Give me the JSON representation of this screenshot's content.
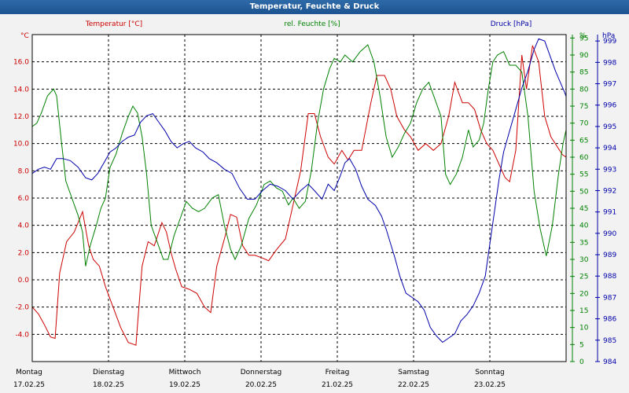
{
  "window": {
    "title": "Temperatur, Feuchte & Druck"
  },
  "chart_data": {
    "type": "line",
    "title": "Temperatur, Feuchte & Druck",
    "axes": {
      "temperature": {
        "label": "Temperatur [°C]",
        "unit": "°C",
        "min": -6,
        "max": 18,
        "ticks": [
          "-4.0",
          "-2.0",
          "0.0",
          "2.0",
          "4.0",
          "6.0",
          "8.0",
          "10.0",
          "12.0",
          "14.0",
          "16.0"
        ],
        "tick_values": [
          -4,
          -2,
          0,
          2,
          4,
          6,
          8,
          10,
          12,
          14,
          16
        ],
        "color": "#cc0000"
      },
      "humidity": {
        "label": "rel. Feuchte [%]",
        "unit": "%",
        "min": 0,
        "max": 96,
        "ticks": [
          "0",
          "5",
          "10",
          "15",
          "20",
          "25",
          "30",
          "35",
          "40",
          "45",
          "50",
          "55",
          "60",
          "65",
          "70",
          "75",
          "80",
          "85",
          "90",
          "95"
        ],
        "tick_values": [
          0,
          5,
          10,
          15,
          20,
          25,
          30,
          35,
          40,
          45,
          50,
          55,
          60,
          65,
          70,
          75,
          80,
          85,
          90,
          95
        ],
        "color": "#008000"
      },
      "pressure": {
        "label": "Druck [hPa]",
        "unit": "hPa",
        "min": 984,
        "max": 999.3,
        "ticks": [
          "984",
          "985",
          "986",
          "987",
          "988",
          "989",
          "990",
          "991",
          "992",
          "993",
          "994",
          "995",
          "996",
          "997",
          "998",
          "999"
        ],
        "tick_values": [
          984,
          985,
          986,
          987,
          988,
          989,
          990,
          991,
          992,
          993,
          994,
          995,
          996,
          997,
          998,
          999
        ],
        "color": "#0000aa"
      }
    },
    "x": {
      "days": [
        {
          "weekday": "Montag",
          "date": "17.02.25"
        },
        {
          "weekday": "Dienstag",
          "date": "18.02.25"
        },
        {
          "weekday": "Mittwoch",
          "date": "19.02.25"
        },
        {
          "weekday": "Donnerstag",
          "date": "20.02.25"
        },
        {
          "weekday": "Freitag",
          "date": "21.02.25"
        },
        {
          "weekday": "Samstag",
          "date": "22.02.25"
        },
        {
          "weekday": "Sonntag",
          "date": "23.02.25"
        }
      ],
      "range_days": [
        0,
        7.0
      ]
    },
    "series": [
      {
        "name": "Temperatur",
        "axis": "temperature",
        "color": "#cc0000",
        "points": [
          [
            0,
            -2.0
          ],
          [
            0.08,
            -2.5
          ],
          [
            0.16,
            -3.3
          ],
          [
            0.24,
            -4.2
          ],
          [
            0.3,
            -4.3
          ],
          [
            0.36,
            0.5
          ],
          [
            0.45,
            2.8
          ],
          [
            0.55,
            3.5
          ],
          [
            0.66,
            5.0
          ],
          [
            0.74,
            2.5
          ],
          [
            0.8,
            1.5
          ],
          [
            0.88,
            1.0
          ],
          [
            0.96,
            -0.5
          ],
          [
            1.06,
            -2.0
          ],
          [
            1.16,
            -3.5
          ],
          [
            1.26,
            -4.6
          ],
          [
            1.36,
            -4.8
          ],
          [
            1.44,
            1.0
          ],
          [
            1.52,
            2.8
          ],
          [
            1.6,
            2.5
          ],
          [
            1.7,
            4.2
          ],
          [
            1.76,
            3.5
          ],
          [
            1.82,
            2.0
          ],
          [
            1.88,
            0.8
          ],
          [
            1.96,
            -0.5
          ],
          [
            2.06,
            -0.7
          ],
          [
            2.16,
            -1.0
          ],
          [
            2.26,
            -2.0
          ],
          [
            2.34,
            -2.4
          ],
          [
            2.42,
            1.0
          ],
          [
            2.52,
            3.0
          ],
          [
            2.6,
            4.8
          ],
          [
            2.68,
            4.6
          ],
          [
            2.76,
            2.5
          ],
          [
            2.84,
            1.8
          ],
          [
            2.92,
            1.8
          ],
          [
            3.02,
            1.6
          ],
          [
            3.1,
            1.4
          ],
          [
            3.2,
            2.2
          ],
          [
            3.32,
            3.0
          ],
          [
            3.42,
            5.5
          ],
          [
            3.52,
            8.0
          ],
          [
            3.62,
            12.2
          ],
          [
            3.7,
            12.2
          ],
          [
            3.78,
            10.5
          ],
          [
            3.88,
            9.0
          ],
          [
            3.96,
            8.5
          ],
          [
            4.06,
            9.5
          ],
          [
            4.14,
            8.8
          ],
          [
            4.22,
            9.5
          ],
          [
            4.32,
            9.5
          ],
          [
            4.44,
            13.0
          ],
          [
            4.52,
            15.0
          ],
          [
            4.62,
            15.0
          ],
          [
            4.7,
            14.0
          ],
          [
            4.78,
            12.0
          ],
          [
            4.88,
            11.0
          ],
          [
            4.96,
            10.5
          ],
          [
            5.06,
            9.5
          ],
          [
            5.16,
            10.0
          ],
          [
            5.26,
            9.5
          ],
          [
            5.36,
            10.0
          ],
          [
            5.46,
            12.0
          ],
          [
            5.54,
            14.5
          ],
          [
            5.64,
            13.0
          ],
          [
            5.72,
            13.0
          ],
          [
            5.8,
            12.5
          ],
          [
            5.88,
            11.0
          ],
          [
            5.96,
            10.0
          ],
          [
            6.04,
            9.5
          ],
          [
            6.12,
            8.5
          ],
          [
            6.2,
            7.5
          ],
          [
            6.26,
            7.2
          ],
          [
            6.34,
            9.5
          ],
          [
            6.42,
            16.5
          ],
          [
            6.48,
            14.0
          ],
          [
            6.56,
            17.2
          ],
          [
            6.64,
            16.0
          ],
          [
            6.72,
            12.0
          ],
          [
            6.8,
            10.5
          ],
          [
            6.88,
            9.8
          ],
          [
            6.95,
            9.2
          ],
          [
            7.0,
            9.0
          ]
        ]
      },
      {
        "name": "rel. Feuchte",
        "axis": "humidity",
        "color": "#008000",
        "points": [
          [
            0,
            69
          ],
          [
            0.06,
            70
          ],
          [
            0.12,
            73
          ],
          [
            0.2,
            78
          ],
          [
            0.28,
            80
          ],
          [
            0.32,
            78
          ],
          [
            0.38,
            65
          ],
          [
            0.44,
            53
          ],
          [
            0.52,
            48
          ],
          [
            0.6,
            43
          ],
          [
            0.66,
            38
          ],
          [
            0.7,
            28
          ],
          [
            0.76,
            34
          ],
          [
            0.84,
            40
          ],
          [
            0.9,
            45
          ],
          [
            0.96,
            48
          ],
          [
            1.02,
            57
          ],
          [
            1.1,
            61
          ],
          [
            1.18,
            67
          ],
          [
            1.26,
            72
          ],
          [
            1.32,
            75
          ],
          [
            1.38,
            73
          ],
          [
            1.44,
            66
          ],
          [
            1.5,
            55
          ],
          [
            1.56,
            40
          ],
          [
            1.64,
            35
          ],
          [
            1.72,
            30
          ],
          [
            1.78,
            30
          ],
          [
            1.86,
            37
          ],
          [
            1.94,
            42
          ],
          [
            2.02,
            47
          ],
          [
            2.1,
            45
          ],
          [
            2.18,
            44
          ],
          [
            2.26,
            45
          ],
          [
            2.36,
            48
          ],
          [
            2.44,
            49
          ],
          [
            2.52,
            40
          ],
          [
            2.6,
            33
          ],
          [
            2.66,
            30
          ],
          [
            2.74,
            34
          ],
          [
            2.84,
            42
          ],
          [
            2.94,
            46
          ],
          [
            3.04,
            52
          ],
          [
            3.12,
            53
          ],
          [
            3.2,
            51
          ],
          [
            3.28,
            50
          ],
          [
            3.36,
            46
          ],
          [
            3.42,
            48
          ],
          [
            3.5,
            45
          ],
          [
            3.58,
            47
          ],
          [
            3.66,
            56
          ],
          [
            3.74,
            70
          ],
          [
            3.82,
            80
          ],
          [
            3.9,
            86
          ],
          [
            3.96,
            89
          ],
          [
            4.04,
            88
          ],
          [
            4.1,
            90
          ],
          [
            4.2,
            88
          ],
          [
            4.3,
            91
          ],
          [
            4.4,
            93
          ],
          [
            4.48,
            88
          ],
          [
            4.56,
            78
          ],
          [
            4.64,
            66
          ],
          [
            4.72,
            60
          ],
          [
            4.8,
            63
          ],
          [
            4.88,
            67
          ],
          [
            4.96,
            70
          ],
          [
            5.04,
            76
          ],
          [
            5.12,
            80
          ],
          [
            5.2,
            82
          ],
          [
            5.28,
            77
          ],
          [
            5.36,
            72
          ],
          [
            5.42,
            55
          ],
          [
            5.48,
            52
          ],
          [
            5.56,
            55
          ],
          [
            5.64,
            60
          ],
          [
            5.72,
            68
          ],
          [
            5.78,
            63
          ],
          [
            5.86,
            65
          ],
          [
            5.92,
            70
          ],
          [
            5.98,
            80
          ],
          [
            6.04,
            88
          ],
          [
            6.1,
            90
          ],
          [
            6.18,
            91
          ],
          [
            6.26,
            87
          ],
          [
            6.34,
            87
          ],
          [
            6.42,
            85
          ],
          [
            6.5,
            72
          ],
          [
            6.58,
            50
          ],
          [
            6.66,
            39
          ],
          [
            6.74,
            31
          ],
          [
            6.82,
            40
          ],
          [
            6.9,
            55
          ],
          [
            6.96,
            64
          ],
          [
            7.0,
            68
          ]
        ]
      },
      {
        "name": "Druck",
        "axis": "pressure",
        "color": "#0000aa",
        "points": [
          [
            0,
            992.8
          ],
          [
            0.08,
            993.0
          ],
          [
            0.16,
            993.1
          ],
          [
            0.24,
            993.0
          ],
          [
            0.32,
            993.5
          ],
          [
            0.4,
            993.5
          ],
          [
            0.5,
            993.4
          ],
          [
            0.6,
            993.1
          ],
          [
            0.7,
            992.6
          ],
          [
            0.78,
            992.5
          ],
          [
            0.86,
            992.8
          ],
          [
            0.94,
            993.3
          ],
          [
            1.02,
            993.8
          ],
          [
            1.1,
            994.0
          ],
          [
            1.18,
            994.3
          ],
          [
            1.26,
            994.5
          ],
          [
            1.34,
            994.6
          ],
          [
            1.42,
            995.2
          ],
          [
            1.5,
            995.5
          ],
          [
            1.58,
            995.6
          ],
          [
            1.66,
            995.2
          ],
          [
            1.74,
            994.8
          ],
          [
            1.82,
            994.3
          ],
          [
            1.9,
            994.0
          ],
          [
            1.98,
            994.2
          ],
          [
            2.06,
            994.3
          ],
          [
            2.14,
            994.0
          ],
          [
            2.24,
            993.8
          ],
          [
            2.32,
            993.5
          ],
          [
            2.42,
            993.3
          ],
          [
            2.52,
            993.0
          ],
          [
            2.62,
            992.8
          ],
          [
            2.72,
            992.1
          ],
          [
            2.82,
            991.6
          ],
          [
            2.92,
            991.6
          ],
          [
            3.02,
            992.0
          ],
          [
            3.12,
            992.3
          ],
          [
            3.22,
            992.2
          ],
          [
            3.32,
            992.0
          ],
          [
            3.42,
            991.6
          ],
          [
            3.52,
            992.0
          ],
          [
            3.62,
            992.3
          ],
          [
            3.7,
            992.0
          ],
          [
            3.8,
            991.6
          ],
          [
            3.88,
            992.3
          ],
          [
            3.96,
            992.0
          ],
          [
            4.04,
            992.7
          ],
          [
            4.1,
            993.3
          ],
          [
            4.16,
            993.5
          ],
          [
            4.24,
            993.0
          ],
          [
            4.32,
            992.2
          ],
          [
            4.4,
            991.6
          ],
          [
            4.5,
            991.3
          ],
          [
            4.58,
            990.8
          ],
          [
            4.64,
            990.2
          ],
          [
            4.7,
            989.5
          ],
          [
            4.76,
            988.8
          ],
          [
            4.82,
            988.0
          ],
          [
            4.9,
            987.2
          ],
          [
            4.98,
            987.0
          ],
          [
            5.06,
            986.8
          ],
          [
            5.14,
            986.4
          ],
          [
            5.22,
            985.6
          ],
          [
            5.3,
            985.2
          ],
          [
            5.38,
            984.9
          ],
          [
            5.46,
            985.1
          ],
          [
            5.54,
            985.3
          ],
          [
            5.62,
            985.9
          ],
          [
            5.7,
            986.2
          ],
          [
            5.78,
            986.6
          ],
          [
            5.86,
            987.2
          ],
          [
            5.94,
            988.0
          ],
          [
            6.0,
            989.5
          ],
          [
            6.06,
            991.0
          ],
          [
            6.12,
            992.5
          ],
          [
            6.18,
            993.8
          ],
          [
            6.26,
            994.8
          ],
          [
            6.34,
            995.8
          ],
          [
            6.42,
            996.8
          ],
          [
            6.5,
            997.6
          ],
          [
            6.58,
            998.6
          ],
          [
            6.64,
            999.1
          ],
          [
            6.72,
            999.0
          ],
          [
            6.8,
            998.2
          ],
          [
            6.86,
            997.6
          ],
          [
            6.92,
            997.1
          ],
          [
            6.98,
            996.6
          ],
          [
            7.0,
            996.4
          ]
        ]
      }
    ]
  }
}
